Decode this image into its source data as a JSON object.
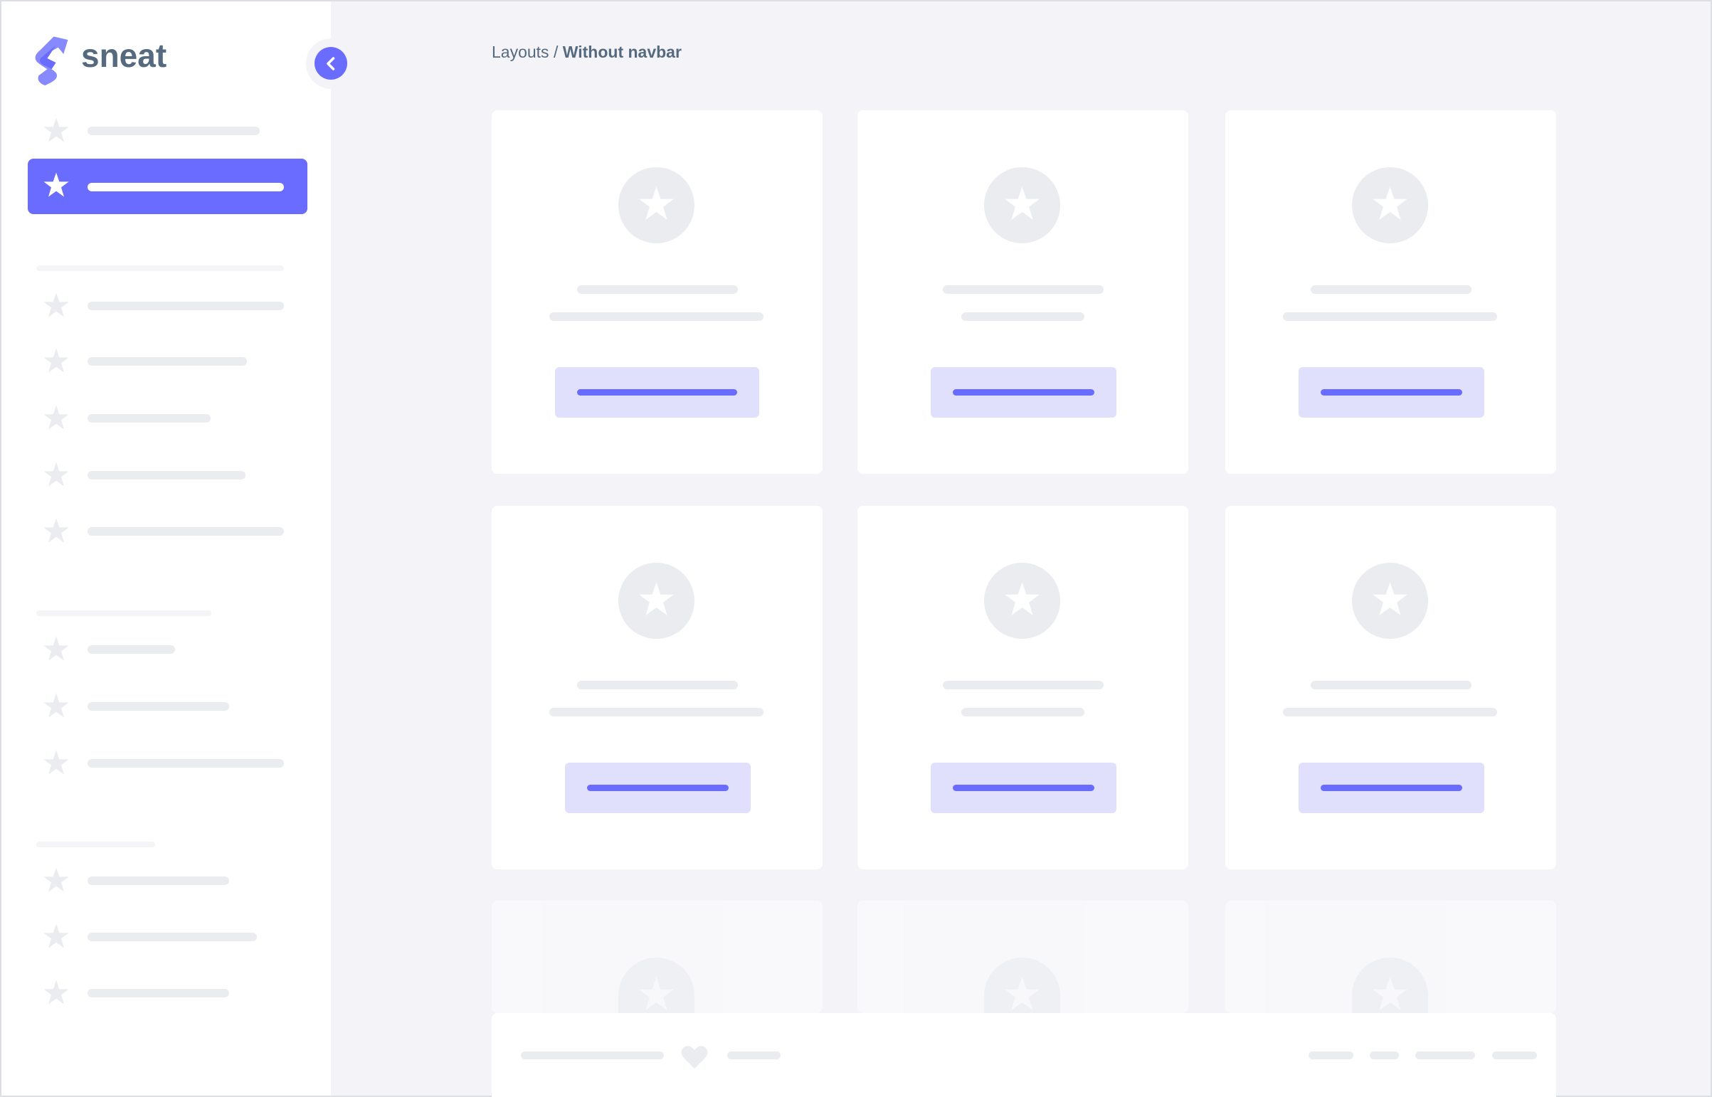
{
  "brand": {
    "name": "sneat",
    "logo_icon": "sneat-s-logo",
    "accent": "#696cff"
  },
  "sidebar": {
    "toggle_icon": "chevron-left-icon",
    "item_icon": "star-icon",
    "active_index": 1
  },
  "breadcrumb": {
    "parent": "Layouts",
    "separator": " / ",
    "current": "Without navbar"
  },
  "footer": {
    "icon": "heart-icon"
  },
  "colors": {
    "background": "#f4f4f8",
    "skeleton": "#ebecf0",
    "button_bg": "#e0e0fc",
    "text": "#566a7f"
  }
}
